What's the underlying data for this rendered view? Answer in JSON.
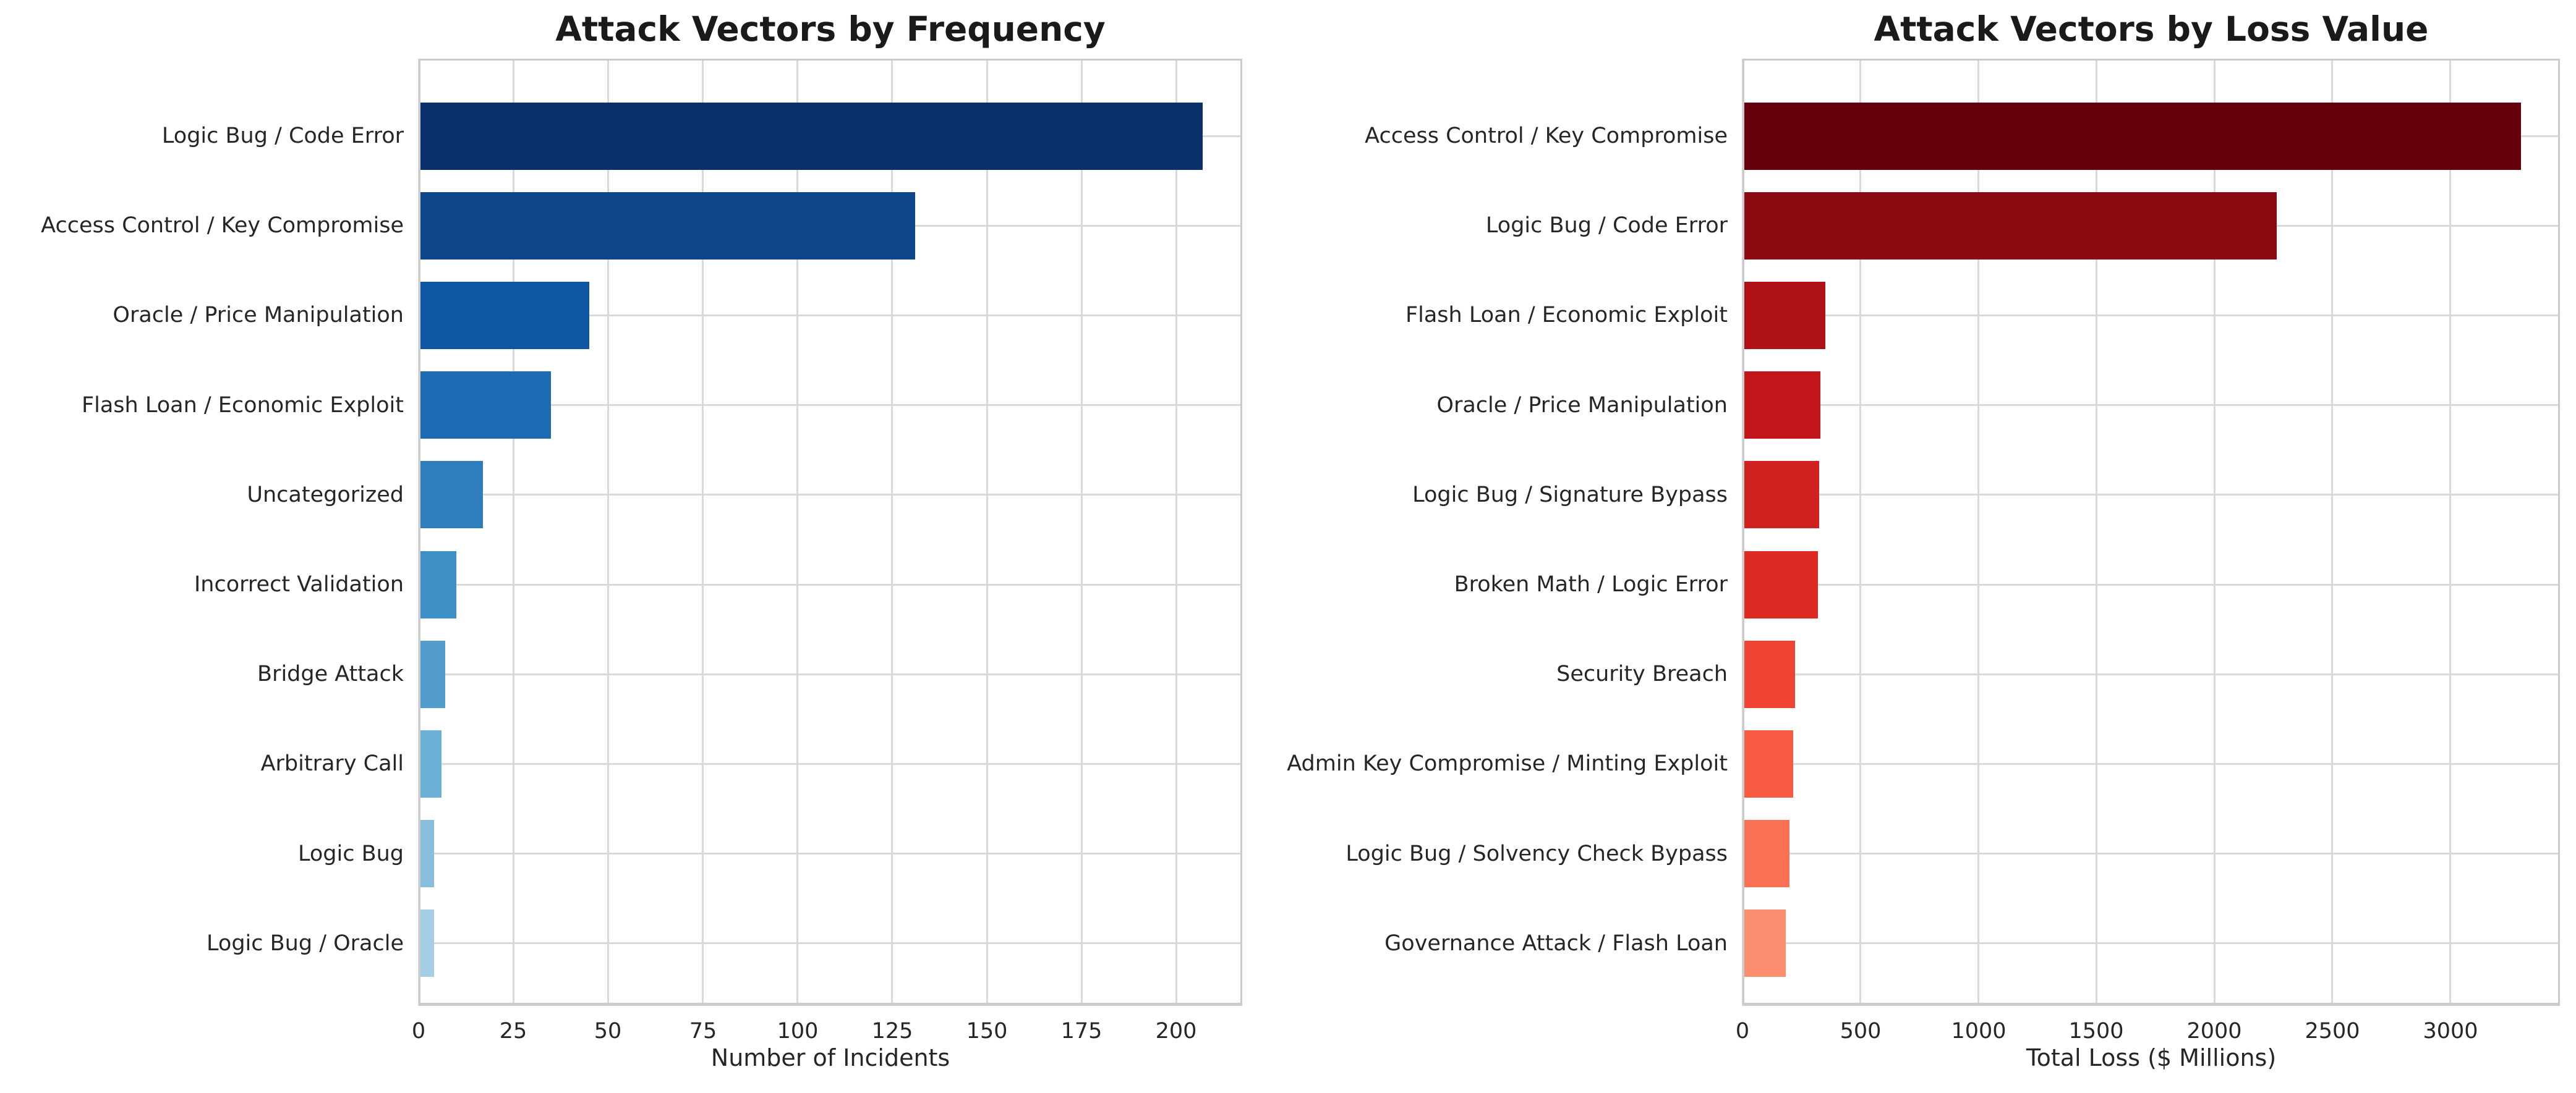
{
  "figure": {
    "background_color": "#ffffff",
    "grid_color": "#d9d9d9",
    "spine_color": "#cbcbcb",
    "title_color": "#1a1a1a",
    "text_color": "#262626"
  },
  "chart_data": [
    {
      "type": "bar",
      "orientation": "horizontal",
      "title": "Attack Vectors by Frequency",
      "xlabel": "Number of Incidents",
      "ylabel": "",
      "categories": [
        "Logic Bug / Code Error",
        "Access Control / Key Compromise",
        "Oracle / Price Manipulation",
        "Flash Loan / Economic Exploit",
        "Uncategorized",
        "Incorrect Validation",
        "Bridge Attack",
        "Arbitrary Call",
        "Logic Bug",
        "Logic Bug / Oracle"
      ],
      "values": [
        207,
        131,
        45,
        35,
        17,
        10,
        7,
        6,
        4,
        4
      ],
      "xticks": [
        0,
        25,
        50,
        75,
        100,
        125,
        150,
        175,
        200
      ],
      "xlim": [
        0,
        217.4
      ],
      "grid": true,
      "legend": false,
      "sort_order": "descending",
      "bar_colors": [
        "#0a306b",
        "#0c4689",
        "#0e56a1",
        "#1b6ab2",
        "#2e7ebb",
        "#3f8ec6",
        "#529dcc",
        "#6cb0d6",
        "#87bedc",
        "#a5cde4"
      ]
    },
    {
      "type": "bar",
      "orientation": "horizontal",
      "title": "Attack Vectors by Loss Value",
      "xlabel": "Total Loss ($ Millions)",
      "ylabel": "",
      "categories": [
        "Access Control / Key Compromise",
        "Logic Bug / Code Error",
        "Flash Loan / Economic Exploit",
        "Oracle / Price Manipulation",
        "Logic Bug / Signature Bypass",
        "Broken Math / Logic Error",
        "Security Breach",
        "Admin Key Compromise / Minting Exploit",
        "Logic Bug / Solvency Check Bypass",
        "Governance Attack / Flash Loan"
      ],
      "values": [
        3300,
        2265,
        350,
        330,
        325,
        320,
        222,
        215,
        198,
        183
      ],
      "xticks": [
        0,
        500,
        1000,
        1500,
        2000,
        2500,
        3000
      ],
      "xlim": [
        0,
        3465
      ],
      "grid": true,
      "legend": false,
      "sort_order": "descending",
      "bar_colors": [
        "#67000d",
        "#8c0a12",
        "#b01116",
        "#c2161b",
        "#d02020",
        "#dd2b23",
        "#ef4434",
        "#f75b42",
        "#f97155",
        "#fa8e6e"
      ]
    }
  ]
}
